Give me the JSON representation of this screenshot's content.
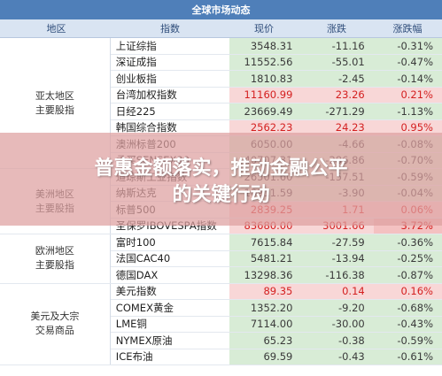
{
  "title": "全球市场动态",
  "columns": [
    "地区",
    "指数",
    "现价",
    "涨跌",
    "涨跌幅"
  ],
  "groups": [
    {
      "region": [
        "亚太地区",
        "主要股指"
      ],
      "rows": [
        {
          "name": "上证综指",
          "price": "3548.31",
          "change": "-11.16",
          "pct": "-0.31%",
          "dir": "neg"
        },
        {
          "name": "深证成指",
          "price": "11552.56",
          "change": "-55.01",
          "pct": "-0.47%",
          "dir": "neg"
        },
        {
          "name": "创业板指",
          "price": "1810.83",
          "change": "-2.45",
          "pct": "-0.14%",
          "dir": "neg"
        },
        {
          "name": "台湾加权指数",
          "price": "11160.99",
          "change": "23.26",
          "pct": "0.21%",
          "dir": "pos"
        },
        {
          "name": "日经225",
          "price": "23669.49",
          "change": "-271.29",
          "pct": "-1.13%",
          "dir": "neg"
        },
        {
          "name": "韩国综合指数",
          "price": "2562.23",
          "change": "24.23",
          "pct": "0.95%",
          "dir": "pos"
        },
        {
          "name": "澳洲标普200",
          "price": "6050.00",
          "change": "-4.66",
          "pct": "-0.08%",
          "dir": "neg"
        },
        {
          "name": "孟买SENSEX30",
          "price": "40707.31",
          "change": "-286.86",
          "pct": "-0.70%",
          "dir": "neg"
        }
      ]
    },
    {
      "region": [
        "美洲地区",
        "主要股指"
      ],
      "rows": [
        {
          "name": "道琼斯工业指数",
          "price": "26501.60",
          "change": "-157.51",
          "pct": "-0.59%",
          "dir": "neg"
        },
        {
          "name": "纳斯达克",
          "price": "10911.59",
          "change": "-3.90",
          "pct": "-0.04%",
          "dir": "neg"
        },
        {
          "name": "标普500",
          "price": "2839.25",
          "change": "1.71",
          "pct": "0.06%",
          "dir": "pos"
        },
        {
          "name": "圣保罗IBOVESPA指数",
          "price": "83680.00",
          "change": "3001.66",
          "pct": "3.72%",
          "dir": "pos",
          "strong": true
        }
      ]
    },
    {
      "region": [
        "欧洲地区",
        "主要股指"
      ],
      "rows": [
        {
          "name": "富时100",
          "price": "7615.84",
          "change": "-27.59",
          "pct": "-0.36%",
          "dir": "neg"
        },
        {
          "name": "法国CAC40",
          "price": "5481.21",
          "change": "-13.94",
          "pct": "-0.25%",
          "dir": "neg"
        },
        {
          "name": "德国DAX",
          "price": "13298.36",
          "change": "-116.38",
          "pct": "-0.87%",
          "dir": "neg"
        }
      ]
    },
    {
      "region": [
        "美元及大宗",
        "交易商品"
      ],
      "rows": [
        {
          "name": "美元指数",
          "price": "89.35",
          "change": "0.14",
          "pct": "0.16%",
          "dir": "pos"
        },
        {
          "name": "COMEX黄金",
          "price": "1352.20",
          "change": "-9.20",
          "pct": "-0.68%",
          "dir": "neg"
        },
        {
          "name": "LME铜",
          "price": "7114.00",
          "change": "-30.00",
          "pct": "-0.43%",
          "dir": "neg"
        },
        {
          "name": "NYMEX原油",
          "price": "65.23",
          "change": "-0.38",
          "pct": "-0.59%",
          "dir": "neg"
        },
        {
          "name": "ICE布油",
          "price": "69.59",
          "change": "-0.43",
          "pct": "-0.61%",
          "dir": "neg"
        }
      ]
    }
  ],
  "banner_lines": [
    "普惠金额落实，推动金融公平",
    "的关键行动"
  ]
}
